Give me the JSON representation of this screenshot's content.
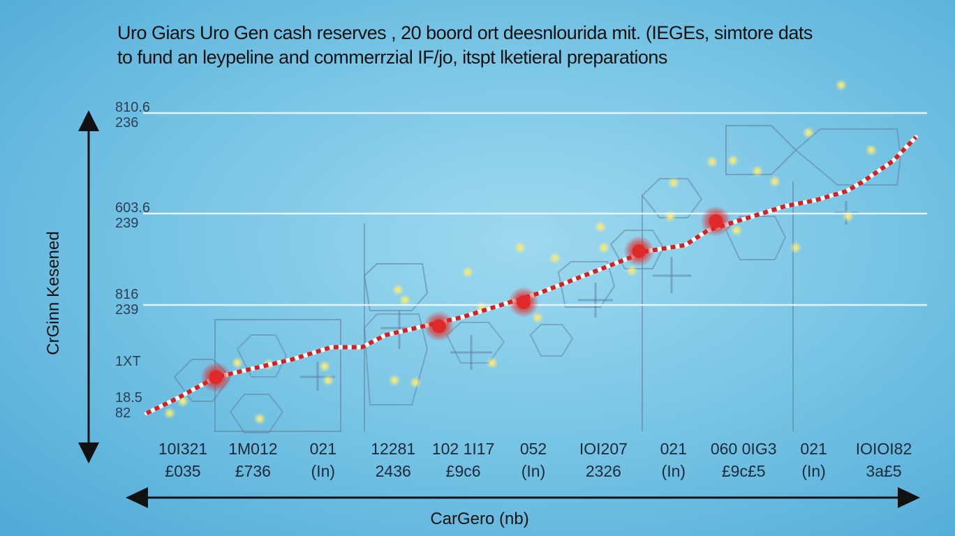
{
  "title": {
    "line1": "Uro Giars Uro Gen cash reserves , 20 boord ort deesnlourida mit. (IEGEs, simtore dats",
    "line2": "to fund an leypeline and commerrzial IF/jo, itspt lketieral preparations"
  },
  "chart_data": {
    "type": "line",
    "xlabel": "CarGero (nb)",
    "ylabel": "CrGinn Kesened",
    "y_tick_labels": [
      [
        "810.6",
        "236"
      ],
      [
        "603.6",
        "239"
      ],
      [
        "816",
        "239"
      ],
      [
        "1XT"
      ],
      [
        "18.5",
        "82"
      ]
    ],
    "x_tick_labels": [
      [
        "10I321",
        "£035"
      ],
      [
        "1M012",
        "£736"
      ],
      [
        "021",
        "(In)"
      ],
      [
        "12281",
        "2436"
      ],
      [
        "102 1I17",
        "£9c6"
      ],
      [
        "052",
        "(In)"
      ],
      [
        "IOI207",
        "2326"
      ],
      [
        "021",
        "(In)"
      ],
      [
        "060 0IG3",
        "£9c£5"
      ],
      [
        "021",
        "(In)"
      ],
      [
        "IOIOI82",
        "3a£5"
      ]
    ],
    "ylim": [
      0,
      100
    ],
    "xlim": [
      0,
      100
    ],
    "grid": true,
    "series": [
      {
        "line_color": "#d42020",
        "x": [
          0,
          4,
          9,
          14,
          19,
          24,
          28,
          31,
          36,
          41,
          46,
          51,
          56,
          61,
          65,
          70,
          73,
          78,
          83,
          87,
          91,
          93,
          97,
          100
        ],
        "y": [
          3,
          8,
          15,
          18,
          21,
          25,
          25,
          29,
          32,
          35,
          39,
          43,
          48,
          53,
          57,
          59,
          64,
          68,
          72,
          74,
          77,
          80,
          87,
          95
        ]
      }
    ],
    "highlight_points": [
      {
        "x": 9,
        "y": 15
      },
      {
        "x": 38,
        "y": 32
      },
      {
        "x": 49,
        "y": 40
      },
      {
        "x": 64,
        "y": 57
      },
      {
        "x": 74,
        "y": 67
      }
    ],
    "colors": {
      "line": "#d42020",
      "dots": "#ffffff",
      "highlight": "#e02a2a",
      "gridline": "#eef8fc",
      "axis": "#111111",
      "sparkle": "#f6e76a",
      "decor": "#5e7d99"
    }
  }
}
